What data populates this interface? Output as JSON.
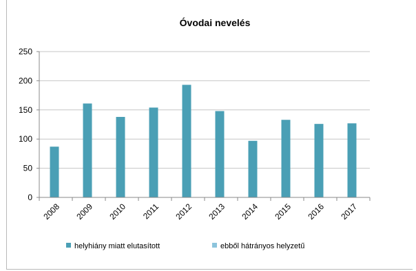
{
  "chart_data": {
    "type": "bar",
    "title": "Óvodai nevelés",
    "xlabel": "",
    "ylabel": "",
    "categories": [
      "2008",
      "2009",
      "2010",
      "2011",
      "2012",
      "2013",
      "2014",
      "2015",
      "2016",
      "2017"
    ],
    "series": [
      {
        "name": "helyhiány miatt elutasított",
        "color": "#4a9fb5",
        "values": [
          87,
          161,
          138,
          154,
          193,
          148,
          97,
          133,
          126,
          127
        ]
      },
      {
        "name": "ebből hátrányos helyzetű",
        "color": "#8cc4dc",
        "values": [
          0,
          0,
          0,
          0,
          0,
          0,
          0,
          0,
          0,
          0
        ]
      }
    ],
    "ylim": [
      0,
      250
    ],
    "yticks": [
      0,
      50,
      100,
      150,
      200,
      250
    ],
    "grid": true,
    "legend": "bottom"
  }
}
